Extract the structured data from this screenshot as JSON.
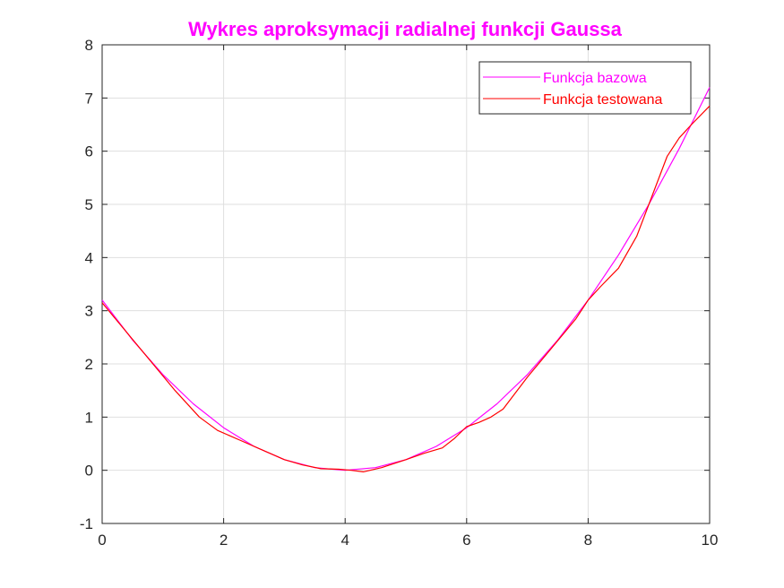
{
  "chart_data": {
    "type": "line",
    "title": "Wykres aproksymacji radialnej funkcji Gaussa",
    "title_color": "#ff00ff",
    "xlabel": "",
    "ylabel": "",
    "xlim": [
      0,
      10
    ],
    "ylim": [
      -1,
      8
    ],
    "x_ticks": [
      0,
      2,
      4,
      6,
      8,
      10
    ],
    "y_ticks": [
      -1,
      0,
      1,
      2,
      3,
      4,
      5,
      6,
      7,
      8
    ],
    "grid": true,
    "legend_position": "top-right",
    "series": [
      {
        "name": "Funkcja bazowa",
        "color": "#ff00ff",
        "x": [
          0,
          0.5,
          1,
          1.5,
          2,
          2.5,
          3,
          3.5,
          4,
          4.5,
          5,
          5.5,
          6,
          6.5,
          7,
          7.5,
          8,
          8.5,
          9,
          9.5,
          10
        ],
        "y": [
          3.2,
          2.45,
          1.8,
          1.25,
          0.8,
          0.45,
          0.2,
          0.05,
          0.0,
          0.05,
          0.2,
          0.45,
          0.8,
          1.25,
          1.8,
          2.45,
          3.2,
          4.05,
          5.0,
          6.05,
          7.2
        ]
      },
      {
        "name": "Funkcja testowana",
        "color": "#ff0000",
        "x": [
          0,
          0.4,
          0.8,
          1.2,
          1.6,
          1.9,
          2.3,
          2.7,
          3.0,
          3.3,
          3.6,
          3.9,
          4.1,
          4.3,
          4.6,
          5.0,
          5.3,
          5.6,
          5.8,
          6.0,
          6.2,
          6.4,
          6.6,
          6.8,
          7.0,
          7.4,
          7.8,
          8.0,
          8.2,
          8.5,
          8.8,
          9.0,
          9.3,
          9.5,
          9.7,
          10.0
        ],
        "y": [
          3.15,
          2.6,
          2.05,
          1.5,
          1.0,
          0.75,
          0.55,
          0.35,
          0.2,
          0.1,
          0.03,
          0.02,
          0.0,
          -0.03,
          0.05,
          0.2,
          0.32,
          0.42,
          0.6,
          0.82,
          0.9,
          1.0,
          1.15,
          1.45,
          1.75,
          2.3,
          2.85,
          3.2,
          3.45,
          3.8,
          4.4,
          5.0,
          5.9,
          6.25,
          6.5,
          6.85
        ]
      }
    ]
  }
}
